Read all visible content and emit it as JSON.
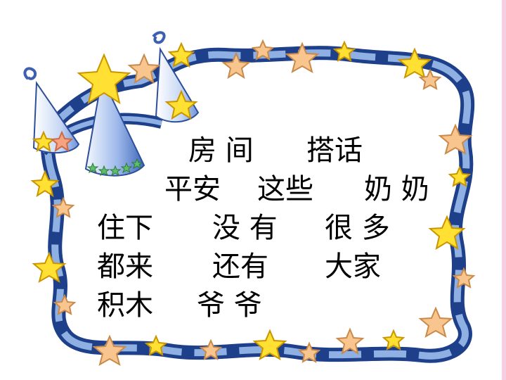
{
  "colors": {
    "ribbon_dark": "#1e3f8a",
    "ribbon_light": "#8fb0e2",
    "star_yellow": "#ffe033",
    "star_orange": "#f8c58f",
    "star_green": "#5fbf6a",
    "cone_blue": "#6f93d8",
    "edge_pink": "#f7cfe2"
  },
  "decoration": {
    "border": "star-ribbon-border",
    "hats": "party-hat-icons"
  },
  "vocabulary": {
    "rows": [
      [
        "房 间",
        "搭话"
      ],
      [
        "平安",
        "这些",
        "奶 奶"
      ],
      [
        "住下",
        "没 有",
        "很 多"
      ],
      [
        "都来",
        "还有",
        "大家"
      ],
      [
        "积木",
        "爷 爷"
      ]
    ]
  }
}
